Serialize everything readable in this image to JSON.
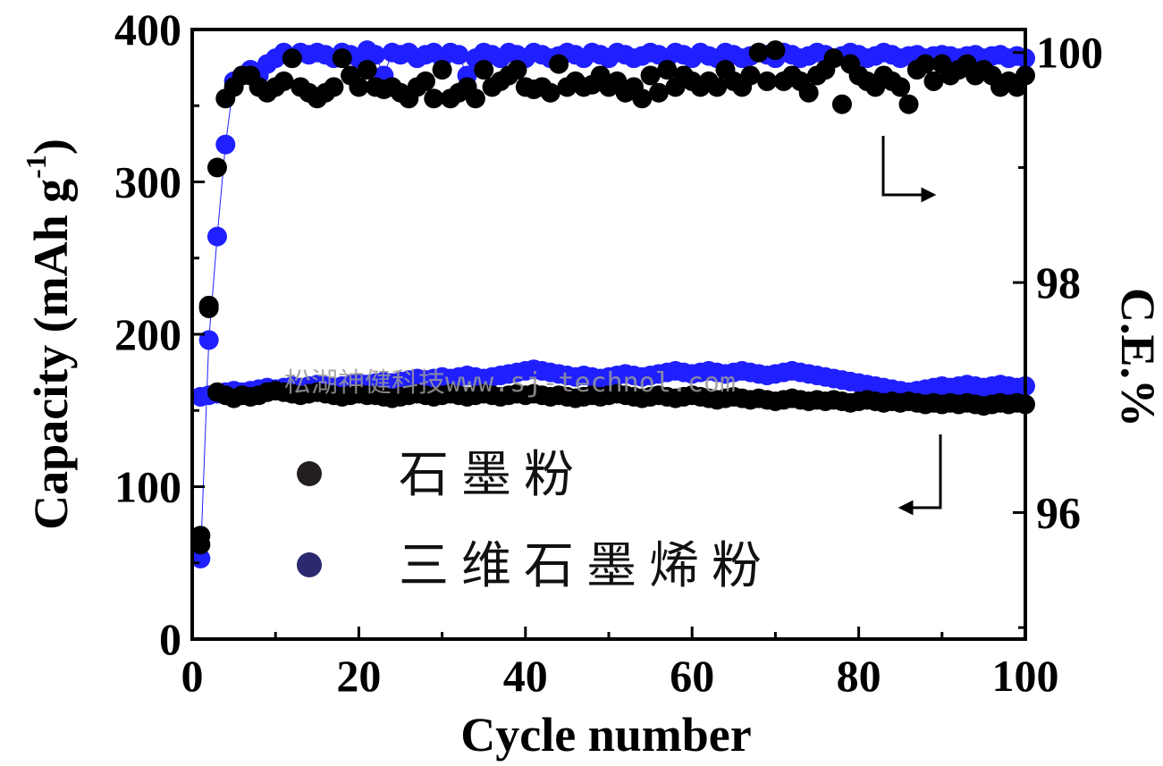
{
  "chart_data": {
    "type": "scatter",
    "xlabel": "Cycle number",
    "ylabel_left": "Capacity (mAh g",
    "ylabel_left_sup": "-1",
    "ylabel_left_close": ")",
    "ylabel_right": "C.E.%",
    "xlim": [
      0,
      100
    ],
    "ylim_left": [
      0,
      400
    ],
    "ylim_right": [
      94.9,
      100.2
    ],
    "x_ticks": [
      "0",
      "20",
      "40",
      "60",
      "80",
      "100"
    ],
    "y_left_ticks": [
      "0",
      "100",
      "200",
      "300",
      "400"
    ],
    "y_right_ticks": [
      "96",
      "98",
      "100"
    ],
    "legend_position": "lower-left",
    "watermark": "松湖神健科技www.sj-technol.com",
    "series": [
      {
        "name": "石墨粉",
        "color": "#000000",
        "marker_color": "#231f20",
        "capacity": [
          62,
          217,
          162,
          160,
          158,
          160,
          159,
          160,
          162,
          163,
          162,
          161,
          160,
          161,
          162,
          161,
          160,
          159,
          160,
          161,
          160,
          160,
          159,
          158,
          159,
          160,
          161,
          160,
          159,
          160,
          161,
          160,
          159,
          160,
          161,
          160,
          159,
          160,
          161,
          160,
          161,
          160,
          159,
          160,
          159,
          158,
          159,
          160,
          159,
          160,
          161,
          160,
          159,
          158,
          159,
          160,
          159,
          158,
          159,
          160,
          159,
          158,
          157,
          158,
          159,
          158,
          157,
          158,
          157,
          156,
          157,
          158,
          157,
          156,
          157,
          156,
          157,
          156,
          155,
          156,
          157,
          156,
          155,
          156,
          155,
          156,
          155,
          154,
          155,
          154,
          155,
          154,
          155,
          154,
          153,
          154,
          155,
          154,
          155,
          154
        ],
        "ce": [
          95.8,
          97.8,
          99.0,
          99.6,
          99.7,
          99.8,
          99.8,
          99.7,
          99.65,
          99.7,
          99.75,
          99.95,
          99.7,
          99.65,
          99.6,
          99.65,
          99.7,
          99.95,
          99.8,
          99.7,
          99.85,
          99.7,
          99.68,
          99.7,
          99.65,
          99.6,
          99.7,
          99.75,
          99.6,
          99.85,
          99.6,
          99.65,
          99.7,
          99.6,
          99.85,
          99.7,
          99.75,
          99.8,
          99.85,
          99.7,
          99.68,
          99.7,
          99.65,
          99.9,
          99.7,
          99.75,
          99.7,
          99.72,
          99.8,
          99.7,
          99.75,
          99.65,
          99.7,
          99.6,
          99.8,
          99.65,
          99.85,
          99.7,
          99.8,
          99.75,
          99.7,
          99.75,
          99.7,
          99.85,
          99.75,
          99.7,
          99.8,
          100.0,
          99.75,
          100.02,
          99.75,
          99.8,
          99.75,
          99.65,
          99.8,
          99.85,
          99.95,
          99.55,
          99.9,
          99.8,
          99.75,
          99.7,
          99.8,
          99.75,
          99.7,
          99.55,
          99.85,
          99.9,
          99.75,
          99.9,
          99.8,
          99.85,
          99.9,
          99.8,
          99.85,
          99.8,
          99.7,
          99.75,
          99.7,
          99.8
        ]
      },
      {
        "name": "三维石墨烯粉",
        "color": "#1f1fff",
        "marker_color": "#2b2a6e",
        "capacity": [
          159,
          160,
          161,
          162,
          163,
          162,
          163,
          164,
          165,
          164,
          165,
          166,
          165,
          166,
          167,
          166,
          165,
          166,
          167,
          168,
          167,
          168,
          169,
          168,
          169,
          170,
          171,
          170,
          171,
          172,
          171,
          172,
          173,
          172,
          171,
          172,
          173,
          174,
          175,
          176,
          177,
          176,
          175,
          174,
          173,
          172,
          173,
          172,
          171,
          172,
          173,
          174,
          173,
          172,
          173,
          174,
          175,
          176,
          175,
          174,
          175,
          176,
          175,
          174,
          175,
          176,
          175,
          174,
          173,
          174,
          175,
          176,
          175,
          174,
          173,
          172,
          171,
          170,
          169,
          168,
          167,
          166,
          165,
          164,
          163,
          162,
          163,
          164,
          165,
          166,
          165,
          166,
          167,
          166,
          165,
          166,
          167,
          166,
          165,
          166
        ],
        "ce": [
          95.6,
          97.5,
          98.4,
          99.2,
          99.75,
          99.8,
          99.85,
          99.8,
          99.9,
          99.95,
          100.0,
          99.95,
          100.0,
          99.98,
          100.0,
          99.98,
          99.95,
          100.0,
          99.98,
          99.95,
          100.02,
          99.98,
          99.8,
          100.0,
          99.98,
          100.0,
          99.95,
          99.98,
          100.0,
          99.95,
          100.0,
          99.98,
          99.8,
          99.95,
          100.0,
          99.98,
          99.95,
          100.0,
          99.98,
          99.95,
          100.0,
          99.98,
          99.95,
          99.97,
          100.0,
          99.98,
          99.95,
          100.0,
          99.98,
          99.95,
          100.0,
          99.98,
          99.95,
          99.97,
          100.0,
          99.98,
          99.95,
          100.0,
          99.98,
          99.95,
          100.0,
          99.97,
          99.95,
          100.0,
          99.98,
          99.95,
          99.97,
          100.0,
          99.98,
          99.95,
          100.0,
          99.98,
          99.95,
          99.97,
          100.0,
          99.98,
          99.95,
          99.97,
          100.0,
          99.98,
          99.95,
          99.97,
          100.0,
          99.98,
          99.95,
          99.97,
          99.98,
          99.95,
          99.97,
          99.98,
          99.97,
          99.95,
          99.97,
          99.98,
          99.95,
          99.97,
          99.98,
          99.95,
          99.97,
          99.95
        ]
      }
    ]
  }
}
